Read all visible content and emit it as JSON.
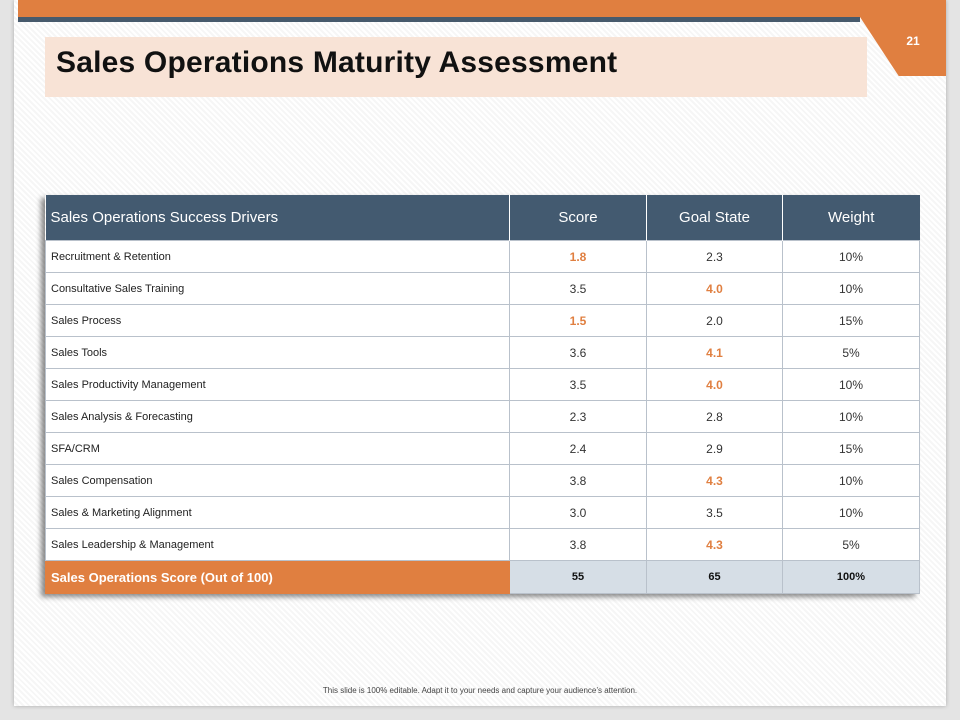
{
  "slide": {
    "page_number": "21",
    "title": "Sales Operations Maturity Assessment",
    "footer_note": "This slide is 100% editable. Adapt it to your needs and capture your audience’s attention."
  },
  "colors": {
    "accent": "#e07f40",
    "header": "#435a70",
    "title_bg": "#f8e3d6",
    "total_bg": "#d6dee6"
  },
  "table": {
    "headers": [
      "Sales Operations Success Drivers",
      "Score",
      "Goal State",
      "Weight"
    ],
    "rows": [
      {
        "driver": "Recruitment & Retention",
        "score": "1.8",
        "goal": "2.3",
        "weight": "10%"
      },
      {
        "driver": "Consultative Sales Training",
        "score": "3.5",
        "goal": "4.0",
        "weight": "10%"
      },
      {
        "driver": "Sales Process",
        "score": "1.5",
        "goal": "2.0",
        "weight": "15%"
      },
      {
        "driver": "Sales Tools",
        "score": "3.6",
        "goal": "4.1",
        "weight": "5%"
      },
      {
        "driver": "Sales Productivity Management",
        "score": "3.5",
        "goal": "4.0",
        "weight": "10%"
      },
      {
        "driver": "Sales Analysis & Forecasting",
        "score": "2.3",
        "goal": "2.8",
        "weight": "10%"
      },
      {
        "driver": "SFA/CRM",
        "score": "2.4",
        "goal": "2.9",
        "weight": "15%"
      },
      {
        "driver": "Sales Compensation",
        "score": "3.8",
        "goal": "4.3",
        "weight": "10%"
      },
      {
        "driver": "Sales & Marketing Alignment",
        "score": "3.0",
        "goal": "3.5",
        "weight": "10%"
      },
      {
        "driver": "Sales Leadership & Management",
        "score": "3.8",
        "goal": "4.3",
        "weight": "5%"
      }
    ],
    "total": {
      "label": "Sales Operations Score (Out of 100)",
      "score": "55",
      "goal": "65",
      "weight": "100%"
    }
  }
}
